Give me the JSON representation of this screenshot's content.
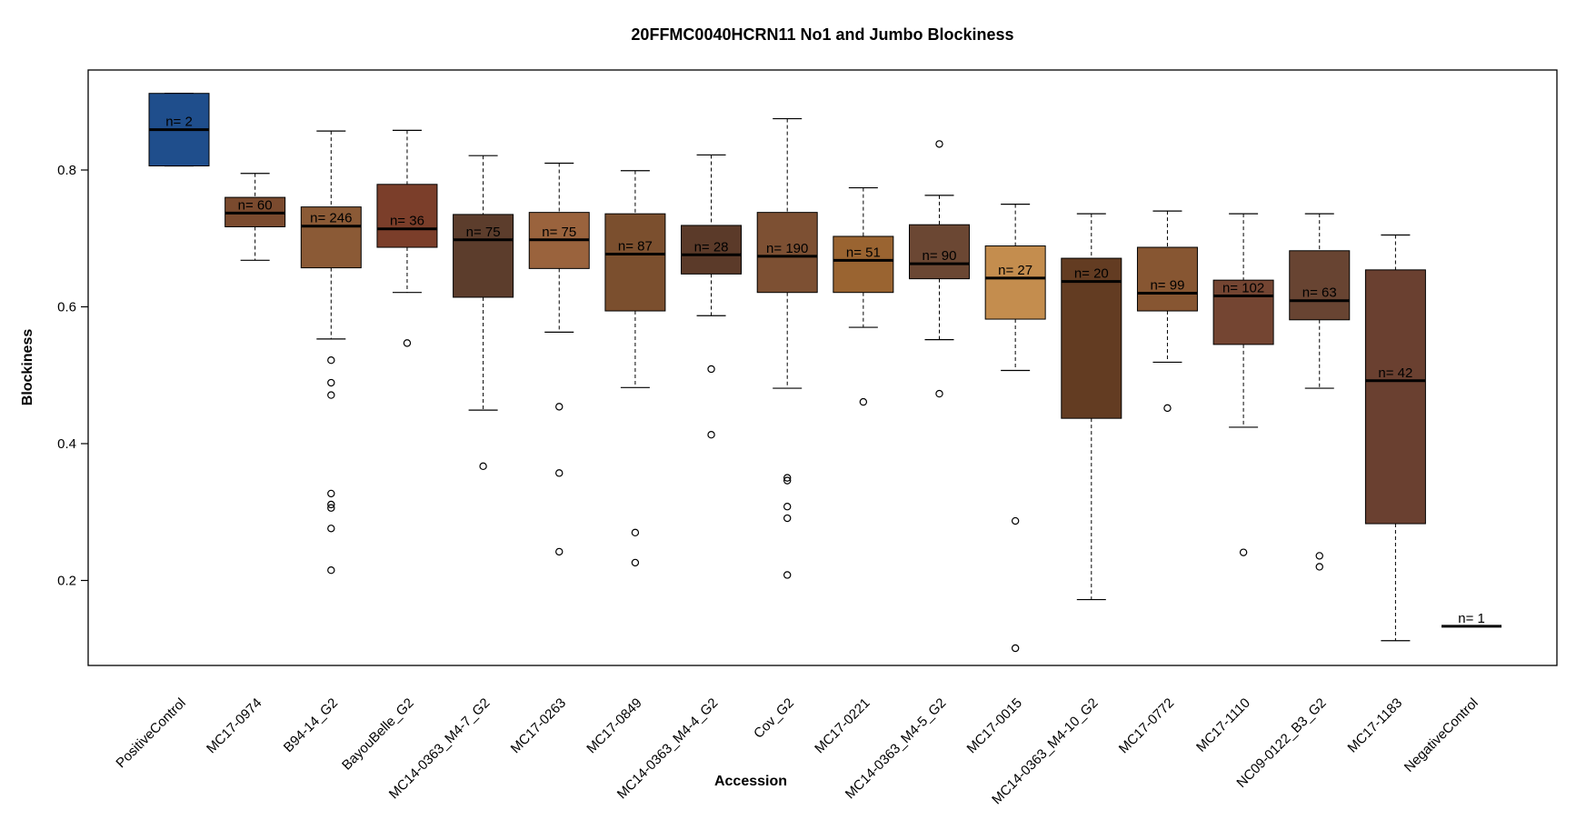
{
  "chart_data": {
    "type": "boxplot",
    "title": "20FFMC0040HCRN11 No1 and Jumbo Blockiness",
    "xlabel": "Accession",
    "ylabel": "Blockiness",
    "ylim": [
      0.07,
      0.93
    ],
    "yticks": [
      0.2,
      0.4,
      0.6,
      0.8
    ],
    "ytick_labels": [
      "0.2",
      "0.4",
      "0.6",
      "0.8"
    ],
    "grid": false,
    "legend": "none",
    "categories": [
      "PositiveControl",
      "MC17-0974",
      "B94-14_G2",
      "BayouBelle_G2",
      "MC14-0363_M4-7_G2",
      "MC17-0263",
      "MC17-0849",
      "MC14-0363_M4-4_G2",
      "Cov_G2",
      "MC17-0221",
      "MC14-0363_M4-5_G2",
      "MC17-0015",
      "MC14-0363_M4-10_G2",
      "MC17-0772",
      "MC17-1110",
      "NC09-0122_B3_G2",
      "MC17-1183",
      "NegativeControl"
    ],
    "boxes": [
      {
        "n_label": "n= 2",
        "color": "#1f4e8c",
        "whisker_low": 0.806,
        "q1": 0.806,
        "median": 0.859,
        "q3": 0.912,
        "whisker_high": 0.912,
        "outliers": []
      },
      {
        "n_label": "n= 60",
        "color": "#7a4a2e",
        "whisker_low": 0.668,
        "q1": 0.717,
        "median": 0.737,
        "q3": 0.76,
        "whisker_high": 0.795,
        "outliers": []
      },
      {
        "n_label": "n= 246",
        "color": "#8b5a36",
        "whisker_low": 0.553,
        "q1": 0.657,
        "median": 0.718,
        "q3": 0.746,
        "whisker_high": 0.857,
        "outliers": [
          0.522,
          0.489,
          0.471,
          0.327,
          0.311,
          0.306,
          0.276,
          0.215
        ]
      },
      {
        "n_label": "n= 36",
        "color": "#7b3e2a",
        "whisker_low": 0.621,
        "q1": 0.687,
        "median": 0.714,
        "q3": 0.779,
        "whisker_high": 0.858,
        "outliers": [
          0.547
        ]
      },
      {
        "n_label": "n= 75",
        "color": "#5c3d2c",
        "whisker_low": 0.449,
        "q1": 0.614,
        "median": 0.698,
        "q3": 0.735,
        "whisker_high": 0.821,
        "outliers": [
          0.367
        ]
      },
      {
        "n_label": "n= 75",
        "color": "#9a633d",
        "whisker_low": 0.563,
        "q1": 0.656,
        "median": 0.698,
        "q3": 0.738,
        "whisker_high": 0.81,
        "outliers": [
          0.454,
          0.357,
          0.242
        ]
      },
      {
        "n_label": "n= 87",
        "color": "#7b4f2e",
        "whisker_low": 0.482,
        "q1": 0.594,
        "median": 0.677,
        "q3": 0.736,
        "whisker_high": 0.799,
        "outliers": [
          0.27,
          0.226
        ]
      },
      {
        "n_label": "n= 28",
        "color": "#5b3a29",
        "whisker_low": 0.587,
        "q1": 0.648,
        "median": 0.676,
        "q3": 0.719,
        "whisker_high": 0.822,
        "outliers": [
          0.509,
          0.413
        ]
      },
      {
        "n_label": "n= 190",
        "color": "#7d5033",
        "whisker_low": 0.481,
        "q1": 0.621,
        "median": 0.674,
        "q3": 0.738,
        "whisker_high": 0.875,
        "outliers": [
          0.35,
          0.346,
          0.308,
          0.291,
          0.208
        ]
      },
      {
        "n_label": "n= 51",
        "color": "#9a6431",
        "whisker_low": 0.57,
        "q1": 0.621,
        "median": 0.668,
        "q3": 0.703,
        "whisker_high": 0.774,
        "outliers": [
          0.461
        ]
      },
      {
        "n_label": "n= 90",
        "color": "#6b4733",
        "whisker_low": 0.552,
        "q1": 0.641,
        "median": 0.663,
        "q3": 0.72,
        "whisker_high": 0.763,
        "outliers": [
          0.838,
          0.473
        ]
      },
      {
        "n_label": "n= 27",
        "color": "#c48d4e",
        "whisker_low": 0.507,
        "q1": 0.582,
        "median": 0.642,
        "q3": 0.689,
        "whisker_high": 0.75,
        "outliers": [
          0.287,
          0.101
        ]
      },
      {
        "n_label": "n= 20",
        "color": "#633c22",
        "whisker_low": 0.172,
        "q1": 0.437,
        "median": 0.637,
        "q3": 0.671,
        "whisker_high": 0.736,
        "outliers": []
      },
      {
        "n_label": "n= 99",
        "color": "#875632",
        "whisker_low": 0.519,
        "q1": 0.594,
        "median": 0.62,
        "q3": 0.687,
        "whisker_high": 0.74,
        "outliers": [
          0.452
        ]
      },
      {
        "n_label": "n= 102",
        "color": "#744532",
        "whisker_low": 0.424,
        "q1": 0.545,
        "median": 0.616,
        "q3": 0.639,
        "whisker_high": 0.736,
        "outliers": [
          0.241
        ]
      },
      {
        "n_label": "n= 63",
        "color": "#684432",
        "whisker_low": 0.481,
        "q1": 0.581,
        "median": 0.609,
        "q3": 0.682,
        "whisker_high": 0.736,
        "outliers": [
          0.236,
          0.22
        ]
      },
      {
        "n_label": "n= 42",
        "color": "#6a4030",
        "whisker_low": 0.112,
        "q1": 0.283,
        "median": 0.492,
        "q3": 0.654,
        "whisker_high": 0.705,
        "outliers": []
      },
      {
        "n_label": "n= 1",
        "color": "#ffffff",
        "whisker_low": 0.133,
        "q1": 0.133,
        "median": 0.133,
        "q3": 0.133,
        "whisker_high": 0.133,
        "outliers": []
      }
    ]
  }
}
